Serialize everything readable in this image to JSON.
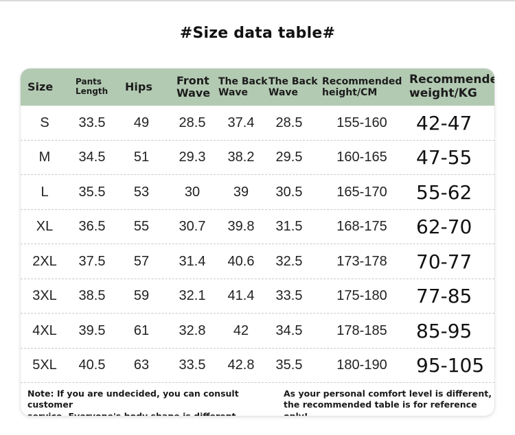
{
  "title": "#Size data table#",
  "headers": [
    "Size",
    "Pants\nLength",
    "Hips",
    "Front\nWave",
    "The Back\nWave",
    "The Back\nWave",
    "Recommended\nheight/CM",
    "Recommended\nweight/KG"
  ],
  "rows": [
    [
      "S",
      "33.5",
      "49",
      "28.5",
      "37.4",
      "28.5",
      "155-160",
      "42-47"
    ],
    [
      "M",
      "34.5",
      "51",
      "29.3",
      "38.2",
      "29.5",
      "160-165",
      "47-55"
    ],
    [
      "L",
      "35.5",
      "53",
      "30",
      "39",
      "30.5",
      "165-170",
      "55-62"
    ],
    [
      "XL",
      "36.5",
      "55",
      "30.7",
      "39.8",
      "31.5",
      "168-175",
      "62-70"
    ],
    [
      "2XL",
      "37.5",
      "57",
      "31.4",
      "40.6",
      "32.5",
      "173-178",
      "70-77"
    ],
    [
      "3XL",
      "38.5",
      "59",
      "32.1",
      "41.4",
      "33.5",
      "175-180",
      "77-85"
    ],
    [
      "4XL",
      "39.5",
      "61",
      "32.8",
      "42",
      "34.5",
      "178-185",
      "85-95"
    ],
    [
      "5XL",
      "40.5",
      "63",
      "33.5",
      "42.8",
      "35.5",
      "180-190",
      "95-105"
    ]
  ],
  "notes": {
    "left": "Note: If you are undecided, you can consult customer\nservice. Everyone's body shape is different.",
    "right": "As your personal comfort level is different,\nthe recommended table is for reference only!"
  },
  "colors": {
    "header_bg": "#b3cab2"
  }
}
